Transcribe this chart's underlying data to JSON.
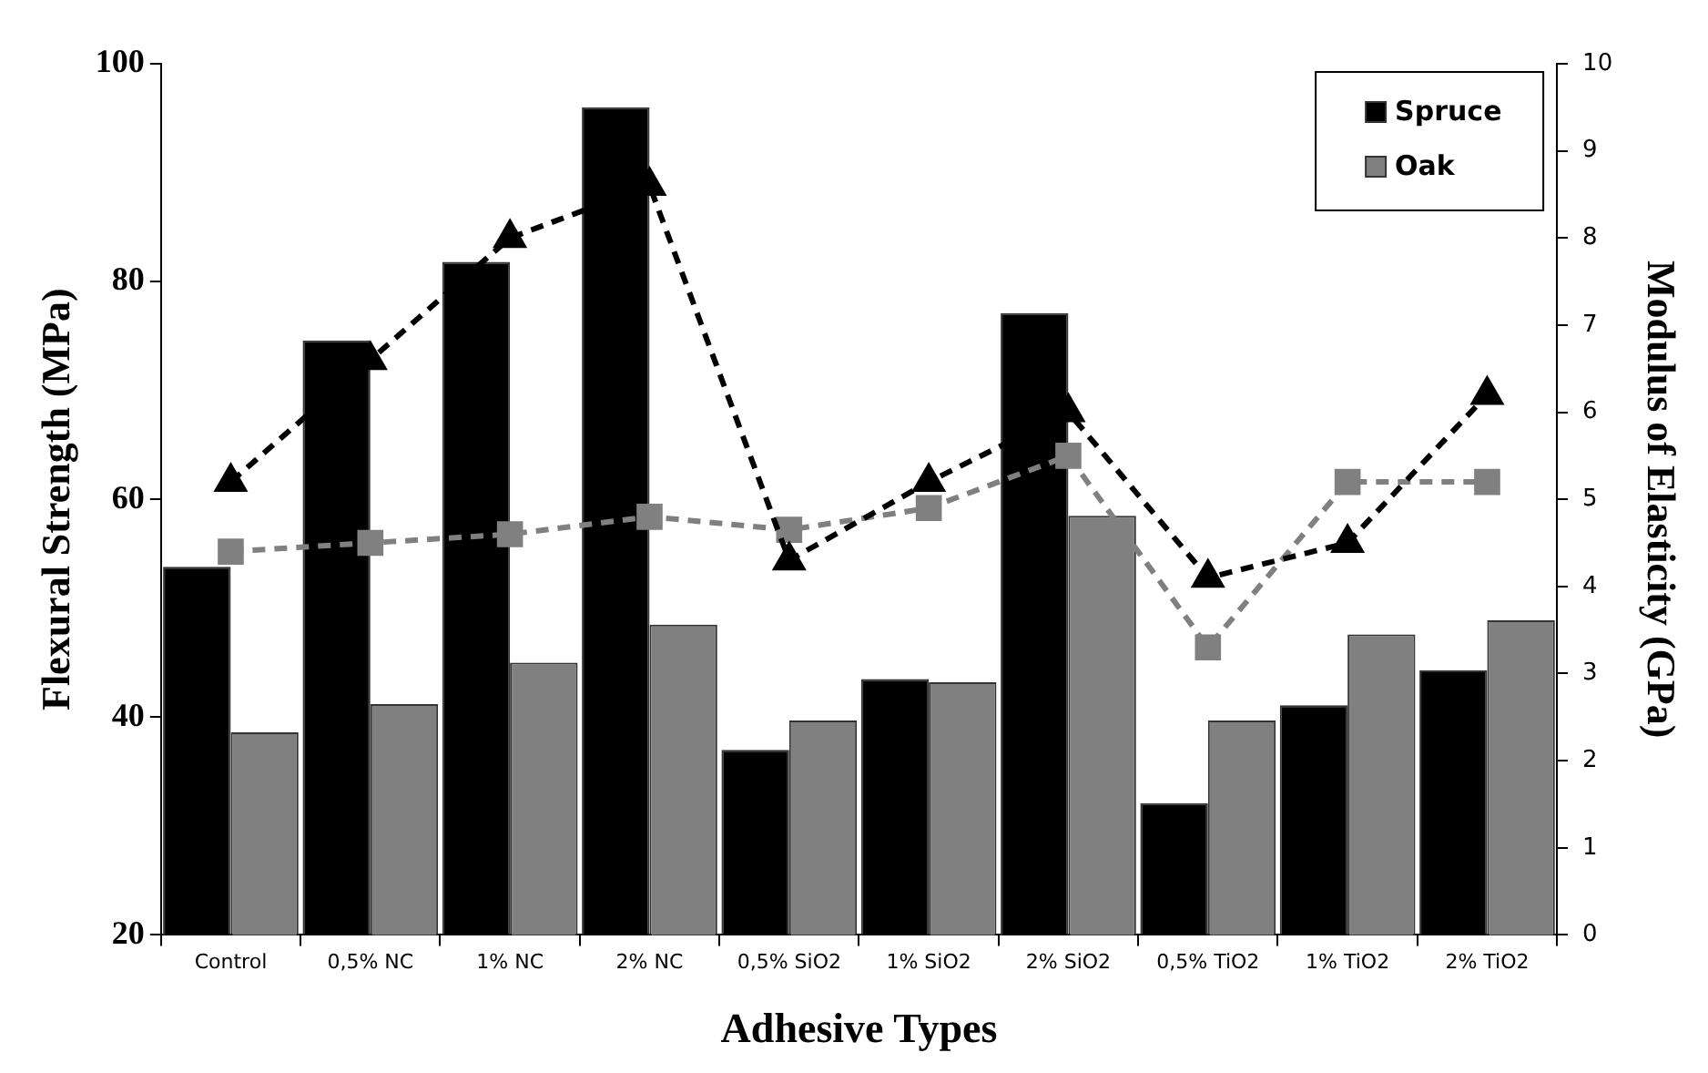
{
  "chart_data": {
    "type": "bar",
    "xlabel": "Adhesive Types",
    "ylabel": "Flexural Strength (MPa)",
    "y2label": "Modulus of Elasticity (GPa)",
    "categories": [
      "Control",
      "0,5% NC",
      "1% NC",
      "2% NC",
      "0,5% SiO2",
      "1% SiO2",
      "2% SiO2",
      "0,5% TiO2",
      "1% TiO2",
      "2% TiO2"
    ],
    "series": [
      {
        "name": "Spruce",
        "color": "#000000",
        "values": [
          53.8,
          74.6,
          81.8,
          96.0,
          37.0,
          43.5,
          77.1,
          32.1,
          41.1,
          44.3
        ]
      },
      {
        "name": "Oak",
        "color": "#808080",
        "values": [
          38.6,
          41.2,
          45.0,
          48.5,
          39.7,
          43.2,
          58.5,
          39.7,
          47.6,
          48.9
        ]
      },
      {
        "type": "line",
        "axis": "y2",
        "color": "#000000",
        "marker": "triangle",
        "line_style": "dashed",
        "values": [
          5.2,
          6.6,
          8.0,
          8.6,
          4.3,
          5.2,
          6.0,
          4.1,
          4.5,
          6.2
        ]
      },
      {
        "type": "line",
        "axis": "y2",
        "color": "#808080",
        "marker": "square",
        "line_style": "dashed",
        "values": [
          4.4,
          4.5,
          4.6,
          4.8,
          4.65,
          4.9,
          5.5,
          3.3,
          5.2,
          5.2
        ]
      }
    ],
    "ylim": [
      20,
      100
    ],
    "yticks": [
      20,
      40,
      60,
      80,
      100
    ],
    "y2lim": [
      0,
      10
    ],
    "y2ticks": [
      0,
      1,
      2,
      3,
      4,
      5,
      6,
      7,
      8,
      9,
      10
    ],
    "grid": false,
    "legend": "top right"
  }
}
